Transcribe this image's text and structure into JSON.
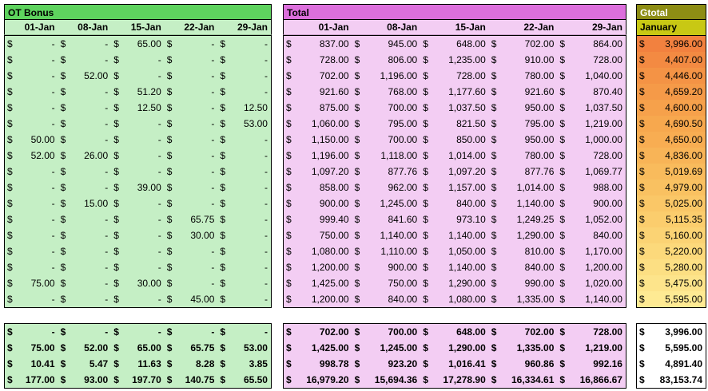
{
  "ot_bonus": {
    "title": "OT Bonus",
    "columns": [
      "01-Jan",
      "08-Jan",
      "15-Jan",
      "22-Jan",
      "29-Jan"
    ],
    "rows": [
      [
        "-",
        "-",
        "65.00",
        "-",
        "-"
      ],
      [
        "-",
        "-",
        "-",
        "-",
        "-"
      ],
      [
        "-",
        "52.00",
        "-",
        "-",
        "-"
      ],
      [
        "-",
        "-",
        "51.20",
        "-",
        "-"
      ],
      [
        "-",
        "-",
        "12.50",
        "-",
        "12.50"
      ],
      [
        "-",
        "-",
        "-",
        "-",
        "53.00"
      ],
      [
        "50.00",
        "-",
        "-",
        "-",
        "-"
      ],
      [
        "52.00",
        "26.00",
        "-",
        "-",
        "-"
      ],
      [
        "-",
        "-",
        "-",
        "-",
        "-"
      ],
      [
        "-",
        "-",
        "39.00",
        "-",
        "-"
      ],
      [
        "-",
        "15.00",
        "-",
        "-",
        "-"
      ],
      [
        "-",
        "-",
        "-",
        "65.75",
        "-"
      ],
      [
        "-",
        "-",
        "-",
        "30.00",
        "-"
      ],
      [
        "-",
        "-",
        "-",
        "-",
        "-"
      ],
      [
        "-",
        "-",
        "-",
        "-",
        "-"
      ],
      [
        "75.00",
        "-",
        "30.00",
        "-",
        "-"
      ],
      [
        "-",
        "-",
        "-",
        "45.00",
        "-"
      ]
    ],
    "summary": [
      [
        "-",
        "-",
        "-",
        "-",
        "-"
      ],
      [
        "75.00",
        "52.00",
        "65.00",
        "65.75",
        "53.00"
      ],
      [
        "10.41",
        "5.47",
        "11.63",
        "8.28",
        "3.85"
      ],
      [
        "177.00",
        "93.00",
        "197.70",
        "140.75",
        "65.50"
      ]
    ]
  },
  "total": {
    "title": "Total",
    "columns": [
      "01-Jan",
      "08-Jan",
      "15-Jan",
      "22-Jan",
      "29-Jan"
    ],
    "rows": [
      [
        "837.00",
        "945.00",
        "648.00",
        "702.00",
        "864.00"
      ],
      [
        "728.00",
        "806.00",
        "1,235.00",
        "910.00",
        "728.00"
      ],
      [
        "702.00",
        "1,196.00",
        "728.00",
        "780.00",
        "1,040.00"
      ],
      [
        "921.60",
        "768.00",
        "1,177.60",
        "921.60",
        "870.40"
      ],
      [
        "875.00",
        "700.00",
        "1,037.50",
        "950.00",
        "1,037.50"
      ],
      [
        "1,060.00",
        "795.00",
        "821.50",
        "795.00",
        "1,219.00"
      ],
      [
        "1,150.00",
        "700.00",
        "850.00",
        "950.00",
        "1,000.00"
      ],
      [
        "1,196.00",
        "1,118.00",
        "1,014.00",
        "780.00",
        "728.00"
      ],
      [
        "1,097.20",
        "877.76",
        "1,097.20",
        "877.76",
        "1,069.77"
      ],
      [
        "858.00",
        "962.00",
        "1,157.00",
        "1,014.00",
        "988.00"
      ],
      [
        "900.00",
        "1,245.00",
        "840.00",
        "1,140.00",
        "900.00"
      ],
      [
        "999.40",
        "841.60",
        "973.10",
        "1,249.25",
        "1,052.00"
      ],
      [
        "750.00",
        "1,140.00",
        "1,140.00",
        "1,290.00",
        "840.00"
      ],
      [
        "1,080.00",
        "1,110.00",
        "1,050.00",
        "810.00",
        "1,170.00"
      ],
      [
        "1,200.00",
        "900.00",
        "1,140.00",
        "840.00",
        "1,200.00"
      ],
      [
        "1,425.00",
        "750.00",
        "1,290.00",
        "990.00",
        "1,020.00"
      ],
      [
        "1,200.00",
        "840.00",
        "1,080.00",
        "1,335.00",
        "1,140.00"
      ]
    ],
    "summary": [
      [
        "702.00",
        "700.00",
        "648.00",
        "702.00",
        "728.00"
      ],
      [
        "1,425.00",
        "1,245.00",
        "1,290.00",
        "1,335.00",
        "1,219.00"
      ],
      [
        "998.78",
        "923.20",
        "1,016.41",
        "960.86",
        "992.16"
      ],
      [
        "16,979.20",
        "15,694.36",
        "17,278.90",
        "16,334.61",
        "16,866.67"
      ]
    ]
  },
  "gtotal": {
    "title": "Gtotal",
    "subtitle": "January",
    "rows": [
      "3,996.00",
      "4,407.00",
      "4,446.00",
      "4,659.20",
      "4,600.00",
      "4,690.50",
      "4,650.00",
      "4,836.00",
      "5,019.69",
      "4,979.00",
      "5,025.00",
      "5,115.35",
      "5,160.00",
      "5,220.00",
      "5,280.00",
      "5,475.00",
      "5,595.00"
    ],
    "row_colors": [
      "#f2813f",
      "#f38a42",
      "#f49345",
      "#f59a48",
      "#f6a14b",
      "#f7a84e",
      "#f8ad52",
      "#f8b457",
      "#f9bb5c",
      "#f9c161",
      "#fac767",
      "#fbcd6d",
      "#fbd374",
      "#fcd97b",
      "#fcdf83",
      "#fde48b",
      "#feea93"
    ],
    "summary": [
      "3,996.00",
      "5,595.00",
      "4,891.40",
      "83,153.74"
    ]
  },
  "currency_symbol": "$"
}
